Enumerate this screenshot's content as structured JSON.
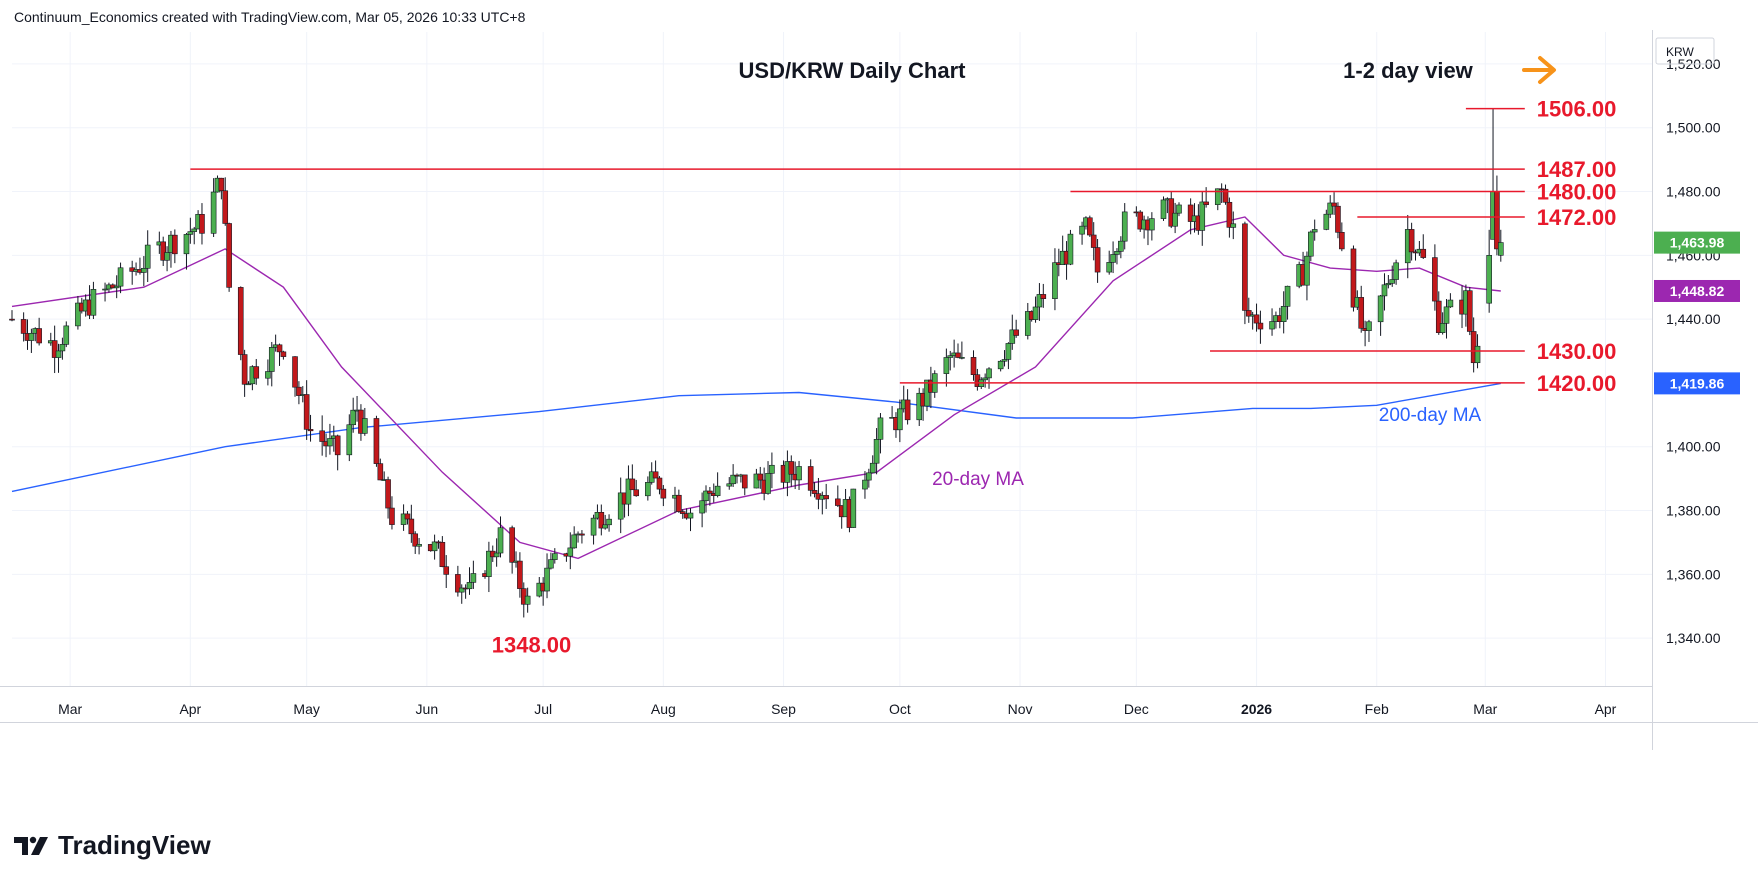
{
  "header": "Continuum_Economics created with TradingView.com, Mar 05, 2026 10:33 UTC+8",
  "brand": "TradingView",
  "chart_data": {
    "type": "candlestick",
    "title": "USD/KRW Daily Chart",
    "view_label": "1-2 day view",
    "currency": "KRW",
    "ylim": [
      1325,
      1530
    ],
    "y_ticks": [
      "1,520.00",
      "1,500.00",
      "1,480.00",
      "1,460.00",
      "1,440.00",
      "1,400.00",
      "1,380.00",
      "1,360.00",
      "1,340.00"
    ],
    "x_labels": [
      {
        "label": "Mar",
        "date": "2025-03-01"
      },
      {
        "label": "Apr",
        "date": "2025-04-01"
      },
      {
        "label": "May",
        "date": "2025-05-01"
      },
      {
        "label": "Jun",
        "date": "2025-06-01"
      },
      {
        "label": "Jul",
        "date": "2025-07-01"
      },
      {
        "label": "Aug",
        "date": "2025-08-01"
      },
      {
        "label": "Sep",
        "date": "2025-09-01"
      },
      {
        "label": "Oct",
        "date": "2025-10-01"
      },
      {
        "label": "Nov",
        "date": "2025-11-01"
      },
      {
        "label": "Dec",
        "date": "2025-12-01"
      },
      {
        "label": "2026",
        "date": "2026-01-01"
      },
      {
        "label": "Feb",
        "date": "2026-02-01"
      },
      {
        "label": "Mar",
        "date": "2026-03-01"
      },
      {
        "label": "Apr",
        "date": "2026-04-01"
      }
    ],
    "x_range": [
      "2025-02-14",
      "2026-04-13"
    ],
    "price_path": [
      [
        "2025-02-14",
        1440
      ],
      [
        "2025-02-25",
        1432
      ],
      [
        "2025-03-06",
        1445
      ],
      [
        "2025-03-14",
        1452
      ],
      [
        "2025-03-24",
        1462
      ],
      [
        "2025-04-04",
        1470
      ],
      [
        "2025-04-09",
        1484
      ],
      [
        "2025-04-11",
        1450
      ],
      [
        "2025-04-15",
        1422
      ],
      [
        "2025-04-25",
        1432
      ],
      [
        "2025-05-02",
        1405
      ],
      [
        "2025-05-09",
        1398
      ],
      [
        "2025-05-14",
        1412
      ],
      [
        "2025-05-23",
        1378
      ],
      [
        "2025-06-03",
        1368
      ],
      [
        "2025-06-12",
        1354
      ],
      [
        "2025-06-20",
        1372
      ],
      [
        "2025-06-27",
        1351
      ],
      [
        "2025-07-01",
        1358
      ],
      [
        "2025-07-10",
        1373
      ],
      [
        "2025-07-22",
        1385
      ],
      [
        "2025-07-31",
        1389
      ],
      [
        "2025-08-08",
        1380
      ],
      [
        "2025-08-15",
        1388
      ],
      [
        "2025-08-29",
        1390
      ],
      [
        "2025-09-05",
        1393
      ],
      [
        "2025-09-12",
        1386
      ],
      [
        "2025-09-18",
        1379
      ],
      [
        "2025-09-26",
        1405
      ],
      [
        "2025-10-07",
        1415
      ],
      [
        "2025-10-14",
        1428
      ],
      [
        "2025-10-21",
        1422
      ],
      [
        "2025-11-04",
        1440
      ],
      [
        "2025-11-11",
        1458
      ],
      [
        "2025-11-18",
        1468
      ],
      [
        "2025-11-21",
        1455
      ],
      [
        "2025-11-28",
        1470
      ],
      [
        "2025-12-08",
        1474
      ],
      [
        "2025-12-16",
        1470
      ],
      [
        "2025-12-23",
        1480
      ],
      [
        "2025-12-26",
        1468
      ],
      [
        "2025-12-29",
        1441
      ],
      [
        "2026-01-06",
        1440
      ],
      [
        "2026-01-13",
        1455
      ],
      [
        "2026-01-16",
        1470
      ],
      [
        "2026-01-21",
        1475
      ],
      [
        "2026-01-26",
        1448
      ],
      [
        "2026-01-29",
        1432
      ],
      [
        "2026-02-05",
        1456
      ],
      [
        "2026-02-09",
        1468
      ],
      [
        "2026-02-13",
        1458
      ],
      [
        "2026-02-17",
        1440
      ],
      [
        "2026-02-24",
        1446
      ],
      [
        "2026-02-26",
        1427
      ],
      [
        "2026-03-02",
        1458
      ],
      [
        "2026-03-03",
        1478
      ],
      [
        "2026-03-04",
        1460
      ],
      [
        "2026-03-05",
        1464
      ]
    ],
    "candles_recent": [
      {
        "date": "2026-03-02",
        "open": 1445,
        "high": 1468,
        "low": 1442,
        "close": 1460
      },
      {
        "date": "2026-03-03",
        "open": 1465,
        "high": 1506,
        "low": 1465,
        "close": 1480
      },
      {
        "date": "2026-03-04",
        "open": 1480,
        "high": 1485,
        "low": 1460,
        "close": 1462
      },
      {
        "date": "2026-03-05",
        "open": 1460,
        "high": 1468,
        "low": 1458,
        "close": 1464
      }
    ],
    "ma20_path": [
      [
        "2025-02-14",
        1444
      ],
      [
        "2025-03-20",
        1450
      ],
      [
        "2025-04-10",
        1462
      ],
      [
        "2025-04-25",
        1450
      ],
      [
        "2025-05-10",
        1425
      ],
      [
        "2025-06-05",
        1392
      ],
      [
        "2025-06-25",
        1370
      ],
      [
        "2025-07-10",
        1365
      ],
      [
        "2025-08-05",
        1380
      ],
      [
        "2025-09-05",
        1388
      ],
      [
        "2025-09-25",
        1392
      ],
      [
        "2025-10-15",
        1410
      ],
      [
        "2025-11-05",
        1425
      ],
      [
        "2025-11-25",
        1452
      ],
      [
        "2025-12-15",
        1468
      ],
      [
        "2025-12-29",
        1472
      ],
      [
        "2026-01-08",
        1460
      ],
      [
        "2026-01-20",
        1456
      ],
      [
        "2026-02-01",
        1455
      ],
      [
        "2026-02-12",
        1456
      ],
      [
        "2026-02-24",
        1450
      ],
      [
        "2026-03-05",
        1448.82
      ]
    ],
    "ma200_path": [
      [
        "2025-02-14",
        1386
      ],
      [
        "2025-04-10",
        1400
      ],
      [
        "2025-05-15",
        1406
      ],
      [
        "2025-06-30",
        1411
      ],
      [
        "2025-08-05",
        1416
      ],
      [
        "2025-09-05",
        1417
      ],
      [
        "2025-09-30",
        1414
      ],
      [
        "2025-10-31",
        1409
      ],
      [
        "2025-11-30",
        1409
      ],
      [
        "2025-12-31",
        1412
      ],
      [
        "2026-01-15",
        1412
      ],
      [
        "2026-02-01",
        1413
      ],
      [
        "2026-03-05",
        1419.86
      ]
    ],
    "levels": [
      {
        "value": 1506.0,
        "label": "1506.00",
        "from": "2026-02-24"
      },
      {
        "value": 1487.0,
        "label": "1487.00",
        "from": "2025-04-01"
      },
      {
        "value": 1480.0,
        "label": "1480.00",
        "from": "2025-11-14"
      },
      {
        "value": 1472.0,
        "label": "1472.00",
        "from": "2026-01-27"
      },
      {
        "value": 1430.0,
        "label": "1430.00",
        "from": "2025-12-20"
      },
      {
        "value": 1420.0,
        "label": "1420.00",
        "from": "2025-10-01"
      }
    ],
    "low_label": {
      "text": "1348.00",
      "value": 1348.0,
      "date": "2025-06-28"
    },
    "annotations": {
      "ma20_label": "20-day MA",
      "ma200_label": "200-day MA"
    },
    "price_badges": [
      {
        "text": "1,463.98",
        "value": 1463.98,
        "color": "#4caf50"
      },
      {
        "text": "1,448.82",
        "value": 1448.82,
        "color": "#9c27b0"
      },
      {
        "text": "1,419.86",
        "value": 1419.86,
        "color": "#2962ff"
      }
    ],
    "colors": {
      "up": "#4caf50",
      "down": "#c2181b",
      "ma20": "#9c27b0",
      "ma200": "#2962ff",
      "levels": "#e8192c",
      "arrow": "#f7931a"
    },
    "grid": true
  }
}
